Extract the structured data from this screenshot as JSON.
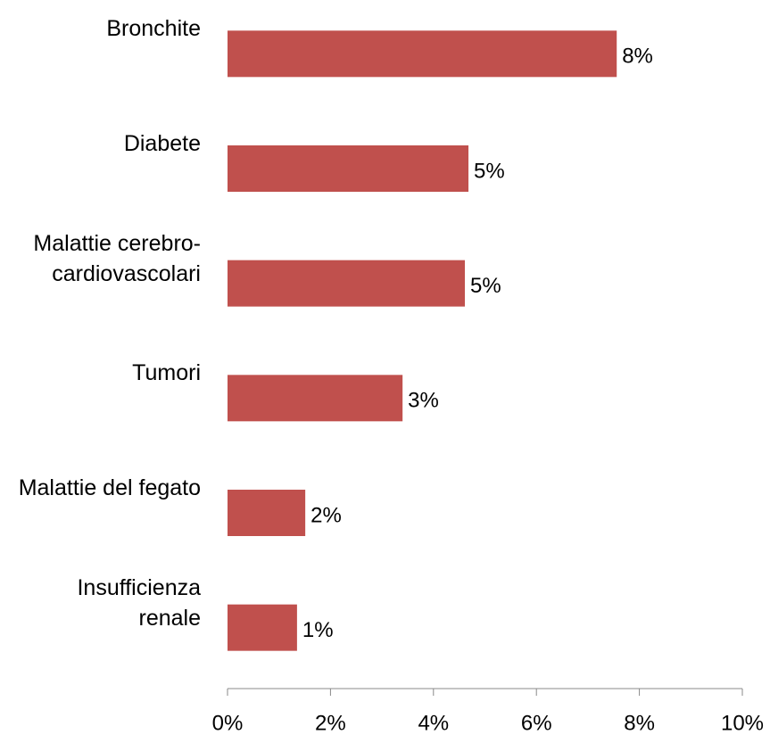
{
  "chart_data": {
    "type": "barh",
    "categories": [
      "Bronchite",
      "Diabete",
      "Malattie cerebro-cardiovascolari",
      "Tumori",
      "Malattie del fegato",
      "Insufficienza renale"
    ],
    "values": [
      7.56,
      4.68,
      4.61,
      3.4,
      1.51,
      1.35
    ],
    "value_labels": [
      "8%",
      "5%",
      "5%",
      "3%",
      "2%",
      "1%"
    ],
    "color": "#c0504d",
    "xlim": [
      0,
      10
    ],
    "xticks": [
      {
        "value": 0,
        "label": "0%"
      },
      {
        "value": 2,
        "label": "2%"
      },
      {
        "value": 4,
        "label": "4%"
      },
      {
        "value": 6,
        "label": "6%"
      },
      {
        "value": 8,
        "label": "8%"
      },
      {
        "value": 10,
        "label": "10%"
      }
    ]
  }
}
